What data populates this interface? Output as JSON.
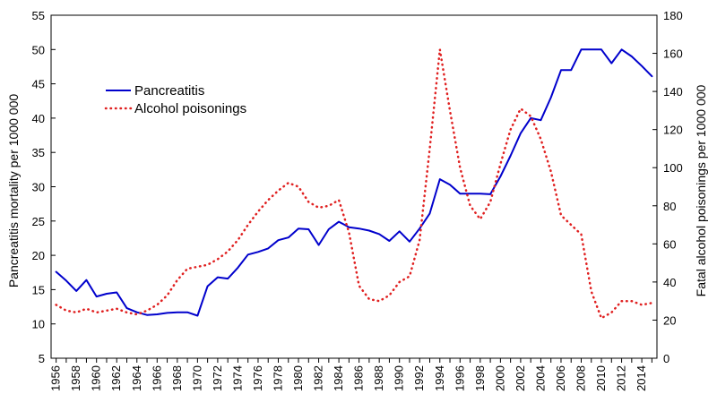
{
  "chart_data": {
    "type": "line",
    "title": "",
    "xlabel": "",
    "ylabel_left": "Pancreatitis mortality per 1000 000",
    "ylabel_right": "Fatal alcohol poisonings per 1000 000",
    "ylim_left": [
      5,
      55
    ],
    "ylim_right": [
      0,
      180
    ],
    "yticks_left": [
      5,
      10,
      15,
      20,
      25,
      30,
      35,
      40,
      45,
      50,
      55
    ],
    "yticks_right": [
      0,
      20,
      40,
      60,
      80,
      100,
      120,
      140,
      160,
      180
    ],
    "xlim": [
      1955.5,
      2015.5
    ],
    "xtick_labels": [
      "1956",
      "1958",
      "1960",
      "1962",
      "1964",
      "1966",
      "1968",
      "1970",
      "1972",
      "1974",
      "1976",
      "1978",
      "1980",
      "1982",
      "1984",
      "1986",
      "1988",
      "1990",
      "1992",
      "1994",
      "1996",
      "1998",
      "2000",
      "2002",
      "2004",
      "2006",
      "2008",
      "2010",
      "2012",
      "2014"
    ],
    "grid": false,
    "legend_position": "upper-left",
    "series": [
      {
        "name": "Pancreatitis",
        "axis": "left",
        "color": "#0000cc",
        "style": "solid",
        "x": [
          1956,
          1957,
          1958,
          1959,
          1960,
          1961,
          1962,
          1963,
          1964,
          1965,
          1966,
          1967,
          1968,
          1969,
          1970,
          1971,
          1972,
          1973,
          1974,
          1975,
          1976,
          1977,
          1978,
          1979,
          1980,
          1981,
          1982,
          1983,
          1984,
          1985,
          1986,
          1987,
          1988,
          1989,
          1990,
          1991,
          1992,
          1993,
          1994,
          1995,
          1996,
          1997,
          1998,
          1999,
          2000,
          2001,
          2002,
          2003,
          2004,
          2005,
          2006,
          2007,
          2008,
          2009,
          2010,
          2011,
          2012,
          2013,
          2014,
          2015
        ],
        "values": [
          17.6,
          16.3,
          14.8,
          16.4,
          14.0,
          14.4,
          14.6,
          12.3,
          11.7,
          11.3,
          11.4,
          11.6,
          11.7,
          11.7,
          11.2,
          15.5,
          16.8,
          16.6,
          18.2,
          20.1,
          20.5,
          21.0,
          22.2,
          22.6,
          23.9,
          23.8,
          21.5,
          23.8,
          24.9,
          24.1,
          23.9,
          23.6,
          23.1,
          22.1,
          23.5,
          22.0,
          23.9,
          26.1,
          31.1,
          30.3,
          29.0,
          29.0,
          29.0,
          28.9,
          31.5,
          34.5,
          37.8,
          40.0,
          39.7,
          43.0,
          47.0,
          47.0,
          50.0,
          50.0,
          50.0,
          48.0,
          50.0,
          49.0,
          47.6,
          46.1
        ]
      },
      {
        "name": "Alcohol poisonings",
        "axis": "right",
        "color": "#e02020",
        "style": "dotted",
        "x": [
          1956,
          1957,
          1958,
          1959,
          1960,
          1961,
          1962,
          1963,
          1964,
          1965,
          1966,
          1967,
          1968,
          1969,
          1970,
          1971,
          1972,
          1973,
          1974,
          1975,
          1976,
          1977,
          1978,
          1979,
          1980,
          1981,
          1982,
          1983,
          1984,
          1985,
          1986,
          1987,
          1988,
          1989,
          1990,
          1991,
          1992,
          1993,
          1994,
          1995,
          1996,
          1997,
          1998,
          1999,
          2000,
          2001,
          2002,
          2003,
          2004,
          2005,
          2006,
          2007,
          2008,
          2009,
          2010,
          2011,
          2012,
          2013,
          2014,
          2015
        ],
        "values": [
          28,
          25,
          24,
          26,
          24,
          25,
          26,
          24,
          23,
          25,
          28,
          33,
          41,
          47,
          48,
          49,
          52,
          56,
          62,
          70,
          77,
          83,
          88,
          92,
          90,
          82,
          79,
          80,
          83,
          66,
          38,
          31,
          30,
          33,
          40,
          43,
          62,
          110,
          162,
          130,
          100,
          80,
          73,
          82,
          102,
          120,
          131,
          127,
          115,
          98,
          75,
          70,
          65,
          35,
          21,
          24,
          30,
          30,
          28,
          29
        ]
      }
    ]
  }
}
